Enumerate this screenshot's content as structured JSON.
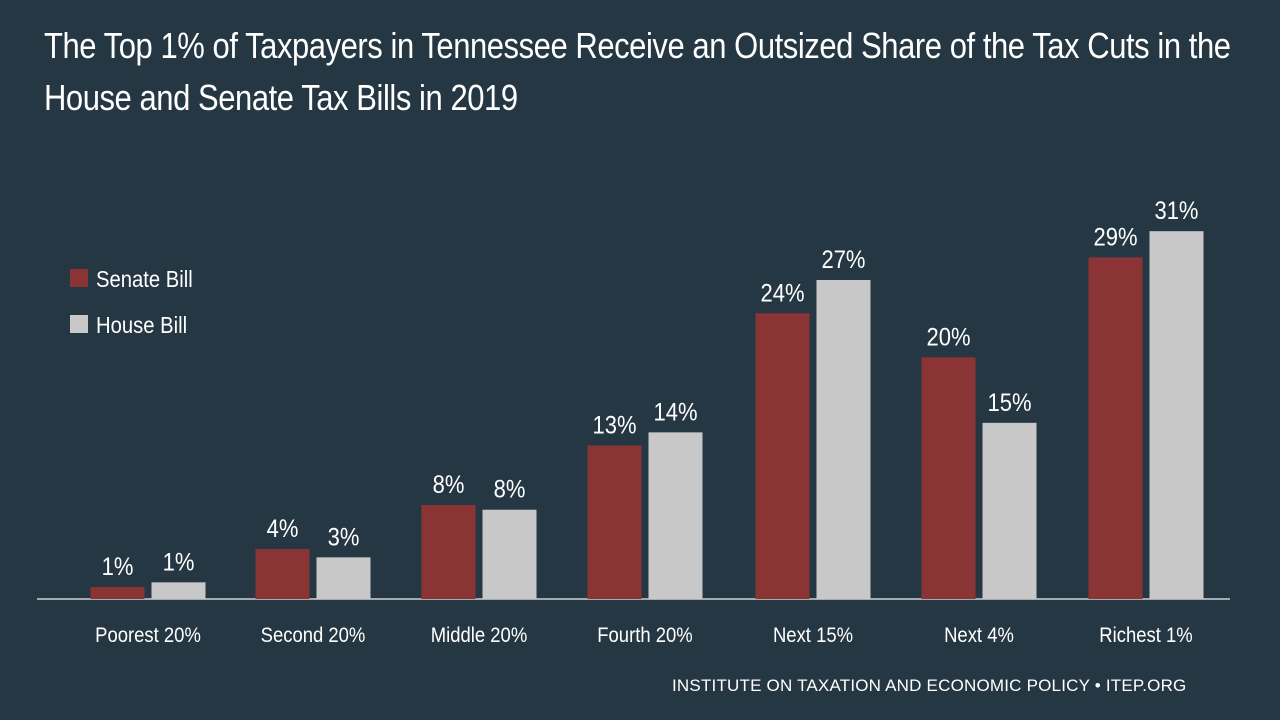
{
  "chart_data": {
    "type": "bar",
    "title": "The Top 1% of Taxpayers in Tennessee Receive an Outsized Share of the Tax Cuts in the House and Senate Tax Bills in 2019",
    "categories": [
      "Poorest 20%",
      "Second 20%",
      "Middle 20%",
      "Fourth 20%",
      "Next 15%",
      "Next 4%",
      "Richest 1%"
    ],
    "series": [
      {
        "name": "Senate Bill",
        "values": [
          1,
          4,
          8,
          13,
          24,
          20,
          29
        ],
        "labels": [
          "1%",
          "4%",
          "8%",
          "13%",
          "24%",
          "20%",
          "29%"
        ],
        "color": "#8B3436"
      },
      {
        "name": "House Bill",
        "values": [
          1,
          3,
          8,
          14,
          27,
          15,
          31
        ],
        "labels": [
          "1%",
          "3%",
          "8%",
          "14%",
          "27%",
          "15%",
          "31%"
        ],
        "color": "#C8C8C8"
      }
    ],
    "plot_values_pct": {
      "Senate Bill": [
        1.0,
        4.2,
        7.9,
        12.9,
        24.0,
        20.3,
        28.7
      ],
      "House Bill": [
        1.4,
        3.5,
        7.5,
        14.0,
        26.8,
        14.8,
        30.9
      ]
    },
    "xlabel": "",
    "ylabel": "",
    "ylim": [
      0,
      31
    ],
    "grid": false,
    "legend_position": "left"
  },
  "colors": {
    "background": "#253743",
    "axis": "#d0d0d0",
    "text": "#ffffff"
  },
  "footer": "INSTITUTE ON TAXATION AND ECONOMIC POLICY • ITEP.ORG"
}
